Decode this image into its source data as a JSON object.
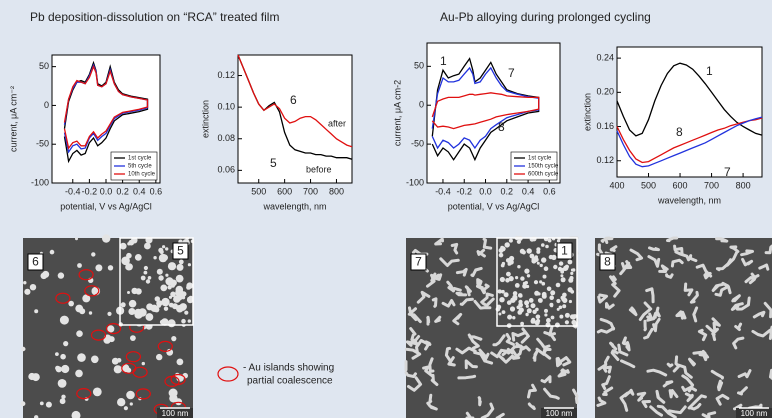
{
  "headings": [
    "Pb deposition-dissolution on “RCA” treated film",
    "Au-Pb alloying during prolonged cycling"
  ],
  "chart_data": [
    {
      "type": "line",
      "x_label": "potential, V vs Ag/AgCl",
      "y_label": "current, μA cm⁻²",
      "x": [
        -0.5,
        -0.45,
        -0.4,
        -0.35,
        -0.3,
        -0.25,
        -0.2,
        -0.15,
        -0.12,
        -0.1,
        -0.05,
        0,
        0.05,
        0.1,
        0.15,
        0.2,
        0.3,
        0.4,
        0.5,
        0.5,
        0.4,
        0.3,
        0.2,
        0.1,
        0.05,
        0,
        -0.05,
        -0.1,
        -0.15,
        -0.2,
        -0.25,
        -0.3,
        -0.35,
        -0.4,
        -0.45,
        -0.5
      ],
      "series": [
        {
          "name": "1st cycle",
          "color": "#000000",
          "values": [
            -30,
            5,
            20,
            30,
            32,
            30,
            40,
            55,
            45,
            28,
            25,
            30,
            50,
            30,
            20,
            15,
            12,
            10,
            8,
            -5,
            -8,
            -10,
            -12,
            -20,
            -30,
            -42,
            -48,
            -52,
            -42,
            -48,
            -62,
            -64,
            -58,
            -62,
            -72,
            -40
          ]
        },
        {
          "name": "5th cycle",
          "color": "#2233dd",
          "values": [
            -25,
            8,
            22,
            30,
            30,
            28,
            38,
            52,
            44,
            26,
            24,
            28,
            46,
            28,
            18,
            14,
            11,
            9,
            7,
            -3,
            -6,
            -8,
            -10,
            -17,
            -26,
            -36,
            -40,
            -45,
            -36,
            -42,
            -55,
            -56,
            -50,
            -52,
            -60,
            -35
          ]
        },
        {
          "name": "10th cycle",
          "color": "#e01010",
          "values": [
            -22,
            8,
            24,
            32,
            30,
            28,
            36,
            50,
            42,
            26,
            24,
            28,
            44,
            28,
            18,
            14,
            11,
            9,
            7,
            -2,
            -5,
            -7,
            -9,
            -15,
            -24,
            -33,
            -37,
            -42,
            -34,
            -40,
            -52,
            -52,
            -46,
            -48,
            -55,
            -30
          ]
        }
      ],
      "xlim": [
        -0.65,
        0.65
      ],
      "xticks": [
        -0.4,
        -0.2,
        {
          "value": 0,
          "label": "0.0"
        },
        0.2,
        0.4,
        0.6
      ],
      "ylim": [
        -100,
        65
      ],
      "yticks": [
        -100,
        -50,
        0,
        50
      ],
      "legend": "lower right"
    },
    {
      "type": "line",
      "x_label": "wavelength, nm",
      "y_label": "extinction",
      "x": [
        420,
        440,
        460,
        480,
        500,
        520,
        540,
        560,
        580,
        600,
        620,
        640,
        660,
        680,
        700,
        720,
        740,
        760,
        780,
        800,
        820,
        840,
        860
      ],
      "series": [
        {
          "color": "#000000",
          "values": [
            0.133,
            0.125,
            0.117,
            0.109,
            0.102,
            0.098,
            0.101,
            0.103,
            0.097,
            0.084,
            0.076,
            0.073,
            0.072,
            0.071,
            0.071,
            0.07,
            0.07,
            0.069,
            0.069,
            0.068,
            0.068,
            0.068,
            0.067
          ]
        },
        {
          "color": "#e01010",
          "values": [
            0.133,
            0.125,
            0.117,
            0.109,
            0.102,
            0.098,
            0.1,
            0.102,
            0.099,
            0.093,
            0.09,
            0.091,
            0.093,
            0.094,
            0.094,
            0.092,
            0.089,
            0.086,
            0.083,
            0.08,
            0.078,
            0.076,
            0.075
          ]
        }
      ],
      "annotations": [
        "6",
        "after",
        "5",
        "before"
      ],
      "xlim": [
        420,
        860
      ],
      "xticks": [
        500,
        600,
        700,
        800
      ],
      "ylim": [
        0.052,
        0.133
      ],
      "yticks": [
        0.06,
        0.08,
        {
          "value": 0.1,
          "label": "0.10"
        },
        0.12
      ]
    },
    {
      "type": "line",
      "x_label": "potential, V vs Ag/AgCl",
      "y_label": "current, μA cm-2",
      "x": [
        -0.5,
        -0.45,
        -0.4,
        -0.35,
        -0.3,
        -0.25,
        -0.2,
        -0.15,
        -0.12,
        -0.1,
        -0.05,
        0,
        0.05,
        0.1,
        0.15,
        0.2,
        0.3,
        0.4,
        0.5,
        0.5,
        0.4,
        0.3,
        0.2,
        0.1,
        0.05,
        0,
        -0.05,
        -0.1,
        -0.15,
        -0.2,
        -0.25,
        -0.3,
        -0.35,
        -0.4,
        -0.45,
        -0.5
      ],
      "series": [
        {
          "name": "1st cycle",
          "color": "#000000",
          "values": [
            -40,
            20,
            45,
            35,
            38,
            40,
            50,
            60,
            45,
            30,
            35,
            45,
            55,
            40,
            30,
            20,
            15,
            12,
            10,
            -8,
            -10,
            -15,
            -20,
            -30,
            -35,
            -45,
            -55,
            -70,
            -55,
            -50,
            -60,
            -70,
            -60,
            -55,
            -65,
            -50
          ]
        },
        {
          "name": "150th cycle",
          "color": "#2233dd",
          "values": [
            -30,
            15,
            35,
            30,
            30,
            32,
            40,
            48,
            40,
            28,
            30,
            40,
            48,
            35,
            25,
            18,
            14,
            11,
            9,
            -6,
            -8,
            -12,
            -16,
            -25,
            -30,
            -40,
            -45,
            -55,
            -45,
            -42,
            -50,
            -55,
            -48,
            -45,
            -55,
            -40
          ]
        },
        {
          "name": "600th cycle",
          "color": "#e01010",
          "values": [
            -15,
            5,
            8,
            10,
            10,
            10,
            12,
            14,
            14,
            13,
            14,
            15,
            16,
            15,
            14,
            12,
            11,
            10,
            10,
            -5,
            -8,
            -10,
            -12,
            -15,
            -18,
            -20,
            -22,
            -24,
            -25,
            -26,
            -28,
            -30,
            -28,
            -27,
            -28,
            -20
          ]
        }
      ],
      "annotations": [
        "1",
        "7",
        "8"
      ],
      "xlim": [
        -0.55,
        0.7
      ],
      "xticks": [
        -0.4,
        -0.2,
        {
          "value": 0,
          "label": "0.0"
        },
        0.2,
        0.4,
        0.6
      ],
      "ylim": [
        -100,
        80
      ],
      "yticks": [
        -100,
        -50,
        0,
        50
      ],
      "legend": "lower right"
    },
    {
      "type": "line",
      "x_label": "wavelength, nm",
      "y_label": "extinction",
      "x": [
        400,
        420,
        440,
        460,
        480,
        500,
        520,
        540,
        560,
        580,
        600,
        620,
        640,
        660,
        680,
        700,
        720,
        740,
        760,
        780,
        800,
        820,
        840,
        860
      ],
      "series": [
        {
          "color": "#000000",
          "values": [
            0.19,
            0.172,
            0.156,
            0.149,
            0.152,
            0.168,
            0.19,
            0.208,
            0.222,
            0.231,
            0.234,
            0.232,
            0.227,
            0.219,
            0.21,
            0.2,
            0.19,
            0.18,
            0.172,
            0.165,
            0.16,
            0.156,
            0.152,
            0.15
          ]
        },
        {
          "color": "#e01010",
          "values": [
            0.16,
            0.145,
            0.132,
            0.122,
            0.118,
            0.119,
            0.123,
            0.127,
            0.131,
            0.135,
            0.138,
            0.141,
            0.144,
            0.147,
            0.15,
            0.153,
            0.156,
            0.158,
            0.161,
            0.163,
            0.165,
            0.167,
            0.168,
            0.17
          ]
        },
        {
          "color": "#2233dd",
          "values": [
            0.155,
            0.139,
            0.125,
            0.116,
            0.113,
            0.114,
            0.117,
            0.12,
            0.123,
            0.126,
            0.129,
            0.132,
            0.135,
            0.138,
            0.141,
            0.145,
            0.149,
            0.153,
            0.157,
            0.161,
            0.164,
            0.167,
            0.169,
            0.171
          ]
        }
      ],
      "annotations": [
        "1",
        "8",
        "7"
      ],
      "xlim": [
        400,
        860
      ],
      "xticks": [
        400,
        500,
        600,
        700,
        800
      ],
      "ylim": [
        0.101,
        0.253
      ],
      "yticks": [
        0.12,
        0.16,
        {
          "value": 0.2,
          "label": "0.20"
        },
        0.24
      ]
    }
  ],
  "micrographs": [
    {
      "label": "6",
      "inset_label": "5",
      "scale_bar": "100 nm"
    },
    {
      "label": "7",
      "inset_label": "1",
      "scale_bar": "100 nm"
    },
    {
      "label": "8",
      "scale_bar": "100 nm"
    }
  ],
  "marker_note": [
    "- Au islands showing",
    "partial coalescence"
  ]
}
